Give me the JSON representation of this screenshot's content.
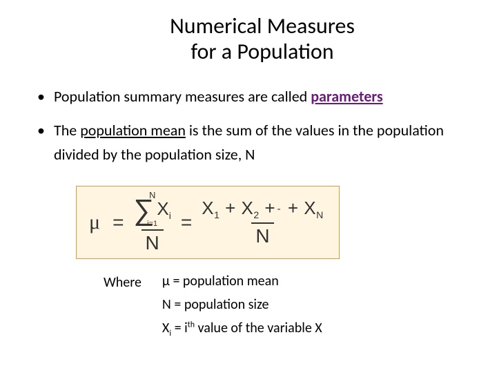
{
  "title_line1": "Numerical Measures",
  "title_line2": "for a Population",
  "bullet1_prefix": "Population summary measures are called ",
  "bullet1_param": "parameters",
  "bullet2_prefix": "The ",
  "bullet2_ul": "population mean",
  "bullet2_rest": " is the sum of the values in the population divided by the population size, N",
  "formula": {
    "mu": "μ",
    "eq": "=",
    "sigma_top": "N",
    "sigma": "∑",
    "sigma_bot": "i=1",
    "Xi": "X",
    "Xi_sub": "i",
    "den1": "N",
    "num2_parts": {
      "x1": "X",
      "s1": "1",
      "plus1": "+ ",
      "x2": "X",
      "s2": "2",
      "plus2": " +",
      "ellipsis": " ",
      "plus3": "+ ",
      "xn": "X",
      "sn": "N"
    },
    "den2": "N"
  },
  "where_label": "Where",
  "defs": {
    "d1": "μ = population mean",
    "d2": "N = population size",
    "d3_pre": "X",
    "d3_sub": "i",
    "d3_mid": " = i",
    "d3_sup": "th",
    "d3_post": " value of the variable X"
  },
  "colors": {
    "param": "#6a1b7a",
    "formula_bg": "#fff5e0",
    "formula_border": "#d0a040",
    "text": "#000000"
  }
}
